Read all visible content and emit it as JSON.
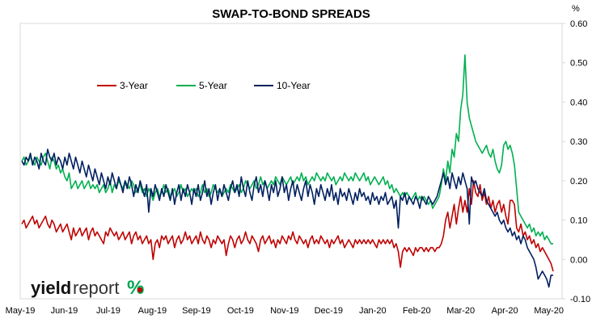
{
  "chart_data": {
    "type": "line",
    "title": "SWAP-TO-BOND SPREADS",
    "y_unit": "%",
    "ylim": [
      -0.1,
      0.6
    ],
    "yticks": [
      "0.60",
      "0.50",
      "0.40",
      "0.30",
      "0.20",
      "0.10",
      "0.00",
      "-0.10"
    ],
    "xticks": [
      "May-19",
      "Jun-19",
      "Jul-19",
      "Aug-19",
      "Sep-19",
      "Oct-19",
      "Nov-19",
      "Dec-19",
      "Jan-20",
      "Feb-20",
      "Mar-20",
      "Apr-20",
      "May-20"
    ],
    "x": [
      "May-19",
      "Jun-19",
      "Jul-19",
      "Aug-19",
      "Sep-19",
      "Oct-19",
      "Nov-19",
      "Dec-19",
      "Jan-20",
      "Feb-20",
      "Mar-20",
      "Apr-20",
      "May-20"
    ],
    "legend_position": "top-left",
    "grid": false,
    "series": [
      {
        "name": "3-Year",
        "color": "#c00000",
        "values": [
          0.09,
          0.07,
          0.06,
          0.05,
          0.05,
          0.05,
          0.05,
          0.04,
          0.04,
          0.03,
          0.18,
          0.07,
          -0.03
        ],
        "daily": [
          0.09,
          0.1,
          0.08,
          0.09,
          0.1,
          0.11,
          0.09,
          0.1,
          0.08,
          0.09,
          0.1,
          0.11,
          0.09,
          0.08,
          0.1,
          0.09,
          0.07,
          0.08,
          0.09,
          0.07,
          0.08,
          0.09,
          0.07,
          0.05,
          0.08,
          0.06,
          0.07,
          0.08,
          0.06,
          0.07,
          0.08,
          0.05,
          0.07,
          0.08,
          0.06,
          0.07,
          0.06,
          0.05,
          0.04,
          0.07,
          0.06,
          0.08,
          0.07,
          0.06,
          0.07,
          0.05,
          0.06,
          0.07,
          0.05,
          0.06,
          0.07,
          0.04,
          0.06,
          0.07,
          0.05,
          0.06,
          0.04,
          0.05,
          0.06,
          0.04,
          0.05,
          0.0,
          0.04,
          0.05,
          0.03,
          0.06,
          0.05,
          0.06,
          0.04,
          0.05,
          0.06,
          0.03,
          0.05,
          0.06,
          0.04,
          0.05,
          0.07,
          0.05,
          0.06,
          0.04,
          0.05,
          0.06,
          0.04,
          0.07,
          0.05,
          0.04,
          0.06,
          0.05,
          0.03,
          0.05,
          0.04,
          0.06,
          0.05,
          0.04,
          0.05,
          0.01,
          0.04,
          0.06,
          0.05,
          0.03,
          0.05,
          0.06,
          0.04,
          0.05,
          0.07,
          0.05,
          0.04,
          0.06,
          0.05,
          0.04,
          0.02,
          0.05,
          0.06,
          0.04,
          0.05,
          0.06,
          0.04,
          0.05,
          0.03,
          0.05,
          0.04,
          0.06,
          0.05,
          0.04,
          0.06,
          0.05,
          0.07,
          0.05,
          0.04,
          0.06,
          0.05,
          0.04,
          0.05,
          0.03,
          0.05,
          0.06,
          0.04,
          0.05,
          0.04,
          0.06,
          0.05,
          0.04,
          0.05,
          0.03,
          0.05,
          0.04,
          0.05,
          0.06,
          0.04,
          0.05,
          0.03,
          0.04,
          0.05,
          0.04,
          0.03,
          0.05,
          0.04,
          0.05,
          0.04,
          0.05,
          0.04,
          0.05,
          0.04,
          0.05,
          0.04,
          0.03,
          0.05,
          0.04,
          0.05,
          0.04,
          0.05,
          0.04,
          0.05,
          0.03,
          0.04,
          0.02,
          -0.02,
          0.02,
          0.03,
          0.02,
          0.03,
          0.02,
          0.01,
          0.03,
          0.02,
          0.03,
          0.03,
          0.02,
          0.03,
          0.02,
          0.03,
          0.03,
          0.02,
          0.03,
          0.03,
          0.04,
          0.06,
          0.1,
          0.12,
          0.08,
          0.11,
          0.14,
          0.09,
          0.13,
          0.16,
          0.12,
          0.15,
          0.12,
          0.18,
          0.14,
          0.2,
          0.17,
          0.16,
          0.19,
          0.15,
          0.17,
          0.14,
          0.16,
          0.13,
          0.15,
          0.12,
          0.14,
          0.15,
          0.12,
          0.14,
          0.11,
          0.09,
          0.15,
          0.15,
          0.14,
          0.08,
          0.07,
          0.09,
          0.06,
          0.07,
          0.05,
          0.06,
          0.04,
          0.05,
          0.03,
          0.04,
          0.02,
          0.03,
          0.02,
          0.01,
          0.0,
          -0.01,
          -0.03
        ]
      },
      {
        "name": "5-Year",
        "color": "#00b050",
        "values": [
          0.25,
          0.22,
          0.19,
          0.18,
          0.19,
          0.2,
          0.2,
          0.21,
          0.19,
          0.16,
          0.4,
          0.27,
          0.04
        ],
        "daily": [
          0.25,
          0.26,
          0.24,
          0.25,
          0.26,
          0.25,
          0.24,
          0.26,
          0.25,
          0.24,
          0.26,
          0.27,
          0.25,
          0.23,
          0.26,
          0.25,
          0.23,
          0.24,
          0.22,
          0.23,
          0.21,
          0.2,
          0.22,
          0.18,
          0.19,
          0.2,
          0.18,
          0.19,
          0.2,
          0.18,
          0.19,
          0.2,
          0.18,
          0.19,
          0.18,
          0.19,
          0.17,
          0.18,
          0.19,
          0.17,
          0.18,
          0.2,
          0.17,
          0.19,
          0.18,
          0.2,
          0.19,
          0.18,
          0.2,
          0.19,
          0.18,
          0.2,
          0.19,
          0.17,
          0.18,
          0.19,
          0.17,
          0.18,
          0.16,
          0.18,
          0.17,
          0.15,
          0.17,
          0.18,
          0.16,
          0.17,
          0.19,
          0.17,
          0.18,
          0.16,
          0.17,
          0.18,
          0.16,
          0.17,
          0.19,
          0.17,
          0.18,
          0.16,
          0.17,
          0.18,
          0.17,
          0.18,
          0.16,
          0.17,
          0.19,
          0.17,
          0.18,
          0.16,
          0.17,
          0.19,
          0.18,
          0.17,
          0.18,
          0.16,
          0.17,
          0.18,
          0.17,
          0.19,
          0.18,
          0.17,
          0.18,
          0.19,
          0.17,
          0.18,
          0.2,
          0.19,
          0.18,
          0.19,
          0.2,
          0.18,
          0.19,
          0.21,
          0.19,
          0.2,
          0.18,
          0.19,
          0.2,
          0.19,
          0.21,
          0.2,
          0.19,
          0.21,
          0.2,
          0.19,
          0.2,
          0.21,
          0.19,
          0.2,
          0.21,
          0.2,
          0.22,
          0.2,
          0.21,
          0.19,
          0.2,
          0.21,
          0.2,
          0.22,
          0.21,
          0.2,
          0.21,
          0.2,
          0.22,
          0.21,
          0.2,
          0.21,
          0.19,
          0.2,
          0.21,
          0.2,
          0.22,
          0.21,
          0.2,
          0.21,
          0.2,
          0.22,
          0.21,
          0.2,
          0.21,
          0.22,
          0.2,
          0.21,
          0.19,
          0.2,
          0.21,
          0.2,
          0.19,
          0.2,
          0.21,
          0.19,
          0.2,
          0.18,
          0.19,
          0.17,
          0.18,
          0.17,
          0.16,
          0.17,
          0.16,
          0.17,
          0.16,
          0.15,
          0.16,
          0.17,
          0.15,
          0.16,
          0.15,
          0.16,
          0.15,
          0.14,
          0.15,
          0.13,
          0.14,
          0.15,
          0.16,
          0.19,
          0.23,
          0.2,
          0.25,
          0.22,
          0.28,
          0.26,
          0.32,
          0.3,
          0.38,
          0.42,
          0.52,
          0.4,
          0.36,
          0.34,
          0.32,
          0.3,
          0.29,
          0.28,
          0.27,
          0.28,
          0.29,
          0.27,
          0.26,
          0.28,
          0.25,
          0.23,
          0.22,
          0.24,
          0.29,
          0.3,
          0.28,
          0.29,
          0.27,
          0.24,
          0.18,
          0.12,
          0.11,
          0.1,
          0.09,
          0.08,
          0.09,
          0.07,
          0.08,
          0.06,
          0.07,
          0.06,
          0.07,
          0.05,
          0.06,
          0.05,
          0.04,
          0.04
        ]
      },
      {
        "name": "10-Year",
        "color": "#002060",
        "values": [
          0.25,
          0.26,
          0.21,
          0.17,
          0.17,
          0.19,
          0.18,
          0.17,
          0.15,
          0.15,
          0.21,
          0.1,
          -0.04
        ],
        "daily": [
          0.25,
          0.24,
          0.26,
          0.25,
          0.27,
          0.24,
          0.26,
          0.25,
          0.23,
          0.27,
          0.25,
          0.24,
          0.28,
          0.26,
          0.25,
          0.27,
          0.24,
          0.26,
          0.25,
          0.23,
          0.26,
          0.24,
          0.27,
          0.25,
          0.23,
          0.26,
          0.24,
          0.22,
          0.25,
          0.23,
          0.21,
          0.24,
          0.22,
          0.2,
          0.23,
          0.21,
          0.19,
          0.22,
          0.2,
          0.18,
          0.21,
          0.19,
          0.22,
          0.2,
          0.18,
          0.21,
          0.19,
          0.17,
          0.2,
          0.18,
          0.21,
          0.19,
          0.16,
          0.19,
          0.17,
          0.2,
          0.18,
          0.16,
          0.19,
          0.12,
          0.18,
          0.16,
          0.19,
          0.17,
          0.15,
          0.18,
          0.16,
          0.19,
          0.17,
          0.15,
          0.18,
          0.14,
          0.17,
          0.19,
          0.15,
          0.18,
          0.16,
          0.19,
          0.17,
          0.14,
          0.18,
          0.16,
          0.19,
          0.15,
          0.17,
          0.2,
          0.16,
          0.18,
          0.14,
          0.17,
          0.19,
          0.15,
          0.18,
          0.16,
          0.19,
          0.17,
          0.15,
          0.18,
          0.2,
          0.17,
          0.19,
          0.16,
          0.21,
          0.18,
          0.16,
          0.2,
          0.17,
          0.15,
          0.19,
          0.21,
          0.17,
          0.19,
          0.16,
          0.2,
          0.18,
          0.15,
          0.19,
          0.17,
          0.2,
          0.16,
          0.18,
          0.21,
          0.17,
          0.19,
          0.15,
          0.18,
          0.2,
          0.16,
          0.19,
          0.17,
          0.15,
          0.18,
          0.2,
          0.16,
          0.19,
          0.17,
          0.14,
          0.18,
          0.16,
          0.19,
          0.17,
          0.15,
          0.18,
          0.16,
          0.19,
          0.15,
          0.17,
          0.14,
          0.18,
          0.16,
          0.17,
          0.15,
          0.18,
          0.16,
          0.14,
          0.17,
          0.15,
          0.18,
          0.16,
          0.17,
          0.15,
          0.16,
          0.14,
          0.17,
          0.15,
          0.16,
          0.14,
          0.16,
          0.15,
          0.17,
          0.14,
          0.15,
          0.16,
          0.13,
          0.15,
          0.08,
          0.16,
          0.15,
          0.17,
          0.14,
          0.16,
          0.15,
          0.14,
          0.16,
          0.15,
          0.13,
          0.16,
          0.15,
          0.14,
          0.16,
          0.15,
          0.14,
          0.15,
          0.16,
          0.18,
          0.2,
          0.22,
          0.19,
          0.21,
          0.18,
          0.22,
          0.2,
          0.18,
          0.21,
          0.19,
          0.22,
          0.2,
          0.18,
          0.09,
          0.21,
          0.19,
          0.2,
          0.18,
          0.17,
          0.16,
          0.18,
          0.15,
          0.14,
          0.13,
          0.12,
          0.11,
          0.12,
          0.1,
          0.09,
          0.1,
          0.08,
          0.07,
          0.08,
          0.06,
          0.07,
          0.05,
          0.06,
          0.04,
          0.06,
          0.05,
          0.03,
          0.02,
          0.01,
          0.0,
          -0.02,
          -0.05,
          -0.04,
          -0.03,
          -0.04,
          -0.05,
          -0.07,
          -0.04,
          -0.04
        ]
      }
    ]
  },
  "logo": {
    "text_a": "yield",
    "text_b": "report",
    "text_c": "%",
    "color_green": "#00a651",
    "color_red": "#c00000"
  }
}
